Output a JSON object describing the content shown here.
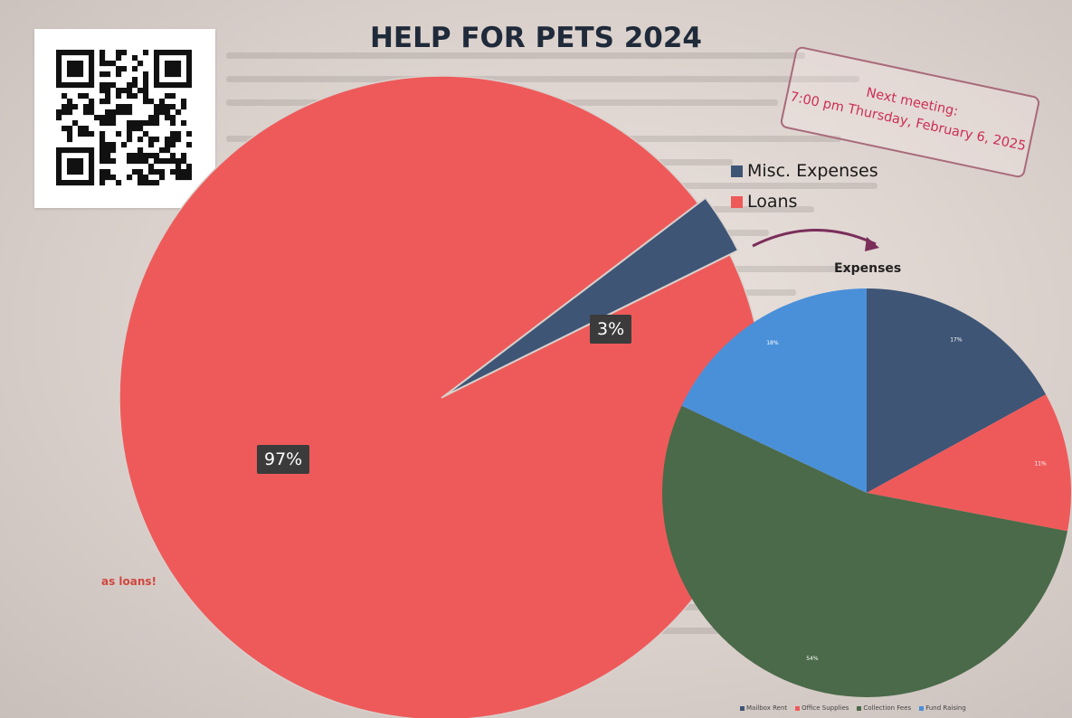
{
  "title": "HELP FOR PETS 2024",
  "meeting_note": {
    "line1": "Next meeting:",
    "line2": "7:00 pm Thursday, February 6, 2025"
  },
  "side_note": "as loans!",
  "colors": {
    "loans": "#ee5a5a",
    "misc_expenses": "#3e5576",
    "mailbox_rent": "#3e5576",
    "office_supplies": "#ee5a5a",
    "collection_fees": "#4a6a49",
    "fund_raising": "#4a90d9",
    "arrow": "#7a2e5a",
    "stamp_text": "#cc2f54"
  },
  "chart_data": [
    {
      "type": "pie",
      "title": "HELP FOR PETS 2024",
      "legend_position": "right",
      "slices": [
        {
          "name": "Misc. Expenses",
          "value": 3,
          "label": "3%",
          "exploded": true
        },
        {
          "name": "Loans",
          "value": 97,
          "label": "97%",
          "exploded": false
        }
      ]
    },
    {
      "type": "pie",
      "title": "Expenses",
      "legend_position": "bottom",
      "slices": [
        {
          "name": "Mailbox Rent",
          "value": 17,
          "label": "17%"
        },
        {
          "name": "Office Supplies",
          "value": 11,
          "label": "11%"
        },
        {
          "name": "Collection Fees",
          "value": 54,
          "label": "54%"
        },
        {
          "name": "Fund Raising",
          "value": 18,
          "label": "18%"
        }
      ]
    }
  ]
}
